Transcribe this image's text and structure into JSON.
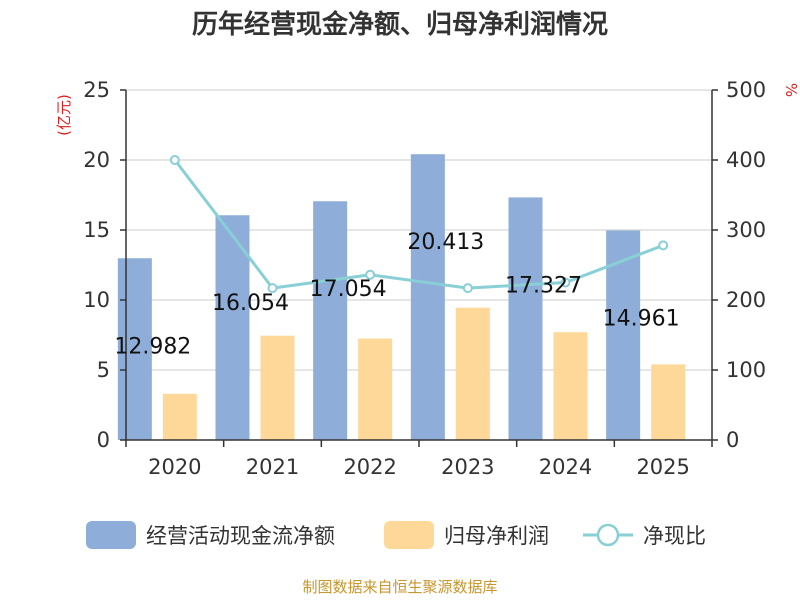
{
  "chart_data": {
    "type": "bar",
    "title": "历年经营现金净额、归母净利润情况",
    "categories": [
      "2020",
      "2021",
      "2022",
      "2023",
      "2024",
      "2025"
    ],
    "series": [
      {
        "name": "经营活动现金流净额",
        "kind": "bar",
        "axis": "left",
        "color": "#8eadd9",
        "values": [
          12.982,
          16.054,
          17.054,
          20.413,
          17.327,
          14.961
        ]
      },
      {
        "name": "归母净利润",
        "kind": "bar",
        "axis": "left",
        "color": "#fed898",
        "values": [
          3.3,
          7.45,
          7.25,
          9.45,
          7.7,
          5.4
        ]
      },
      {
        "name": "净现比",
        "kind": "line",
        "axis": "right",
        "color": "#88cfd6",
        "values": [
          400,
          217,
          236,
          217,
          225,
          278
        ]
      }
    ],
    "data_labels": [
      "12.982",
      "16.054",
      "17.054",
      "20.413",
      "17.327",
      "14.961"
    ],
    "y_left": {
      "unit": "(亿元)",
      "ylim": [
        0,
        25
      ],
      "ticks": [
        "0",
        "5",
        "10",
        "15",
        "20",
        "25"
      ]
    },
    "y_right": {
      "unit": "%",
      "ylim": [
        0,
        500
      ],
      "ticks": [
        "0",
        "100",
        "200",
        "300",
        "400",
        "500"
      ]
    },
    "grid": true,
    "legend": "bottom"
  },
  "source": "制图数据来自恒生聚源数据库"
}
